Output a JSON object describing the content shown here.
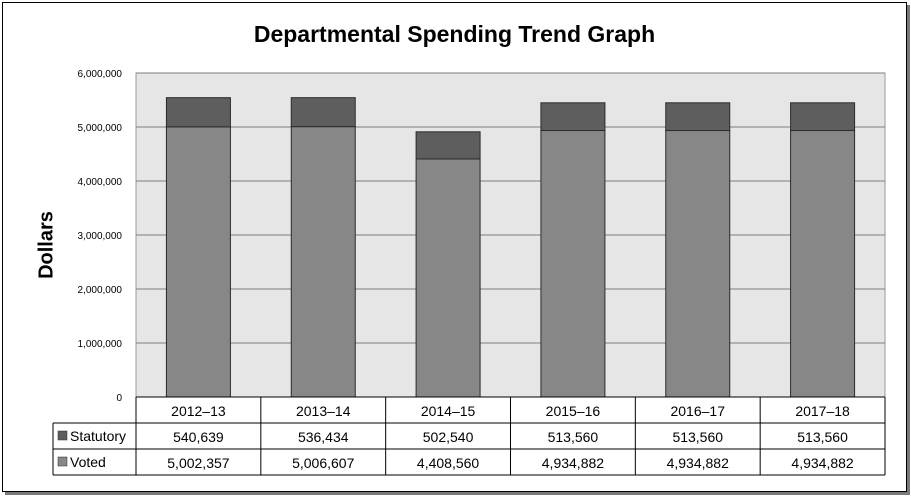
{
  "chart_data": {
    "type": "bar",
    "stacked": true,
    "title": "Departmental Spending Trend Graph",
    "ylabel": "Dollars",
    "xlabel": "",
    "ylim": [
      0,
      6000000
    ],
    "yticks": [
      "0",
      "1,000,000",
      "2,000,000",
      "3,000,000",
      "4,000,000",
      "5,000,000",
      "6,000,000"
    ],
    "ytick_values": [
      0,
      1000000,
      2000000,
      3000000,
      4000000,
      5000000,
      6000000
    ],
    "grid": true,
    "legend": "data-table",
    "categories": [
      "2012–13",
      "2013–14",
      "2014–15",
      "2015–16",
      "2016–17",
      "2017–18"
    ],
    "series": [
      {
        "name": "Voted",
        "color": "#878787",
        "values": [
          5002357,
          5006607,
          4408560,
          4934882,
          4934882,
          4934882
        ],
        "labels": [
          "5,002,357",
          "5,006,607",
          "4,408,560",
          "4,934,882",
          "4,934,882",
          "4,934,882"
        ]
      },
      {
        "name": "Statutory",
        "color": "#5e5e5e",
        "values": [
          540639,
          536434,
          502540,
          513560,
          513560,
          513560
        ],
        "labels": [
          "540,639",
          "536,434",
          "502,540",
          "513,560",
          "513,560",
          "513,560"
        ]
      }
    ]
  }
}
